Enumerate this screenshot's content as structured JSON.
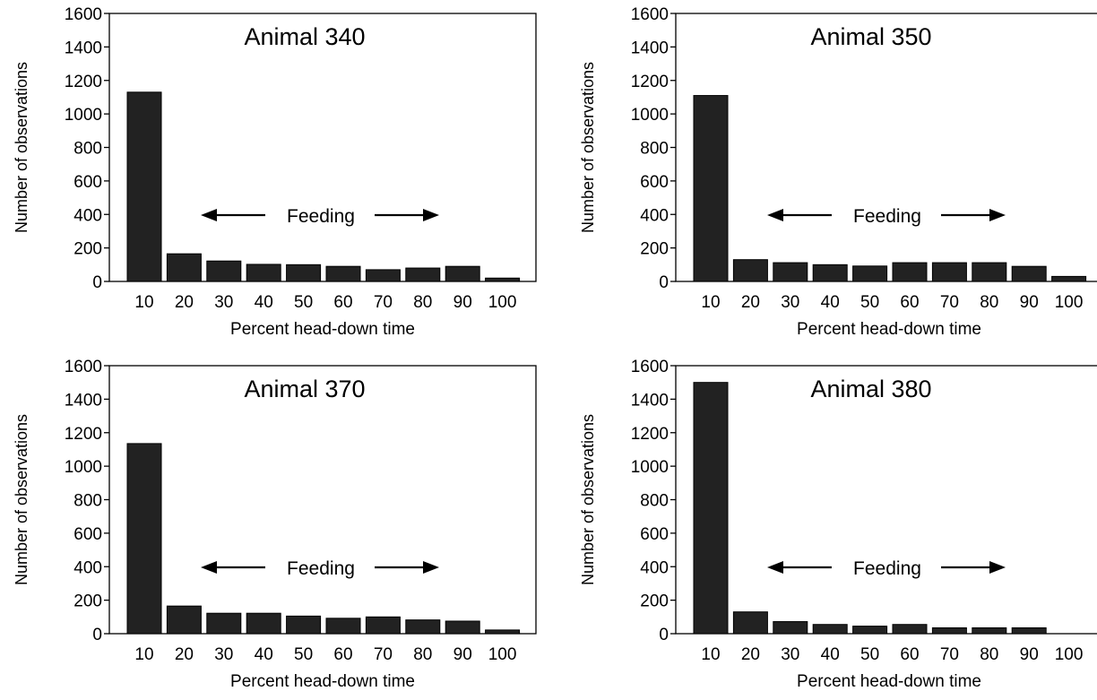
{
  "chart_data": [
    {
      "type": "bar",
      "title": "Animal 340",
      "xlabel": "Percent head-down time",
      "ylabel": "Number of observations",
      "categories": [
        "10",
        "20",
        "30",
        "40",
        "50",
        "60",
        "70",
        "80",
        "90",
        "100"
      ],
      "values": [
        1130,
        165,
        122,
        102,
        100,
        90,
        70,
        80,
        90,
        20
      ],
      "ylim": [
        0,
        1600
      ],
      "yticks": [
        "0",
        "200",
        "400",
        "600",
        "800",
        "1000",
        "1200",
        "1400",
        "1600"
      ],
      "annotation": "Feeding",
      "bar_color": "#222222",
      "grid": false
    },
    {
      "type": "bar",
      "title": "Animal 350",
      "xlabel": "Percent head-down time",
      "ylabel": "Number of observations",
      "categories": [
        "10",
        "20",
        "30",
        "40",
        "50",
        "60",
        "70",
        "80",
        "90",
        "100"
      ],
      "values": [
        1110,
        130,
        112,
        100,
        92,
        112,
        112,
        112,
        90,
        30
      ],
      "ylim": [
        0,
        1600
      ],
      "yticks": [
        "0",
        "200",
        "400",
        "600",
        "800",
        "1000",
        "1200",
        "1400",
        "1600"
      ],
      "annotation": "Feeding",
      "bar_color": "#222222",
      "grid": false
    },
    {
      "type": "bar",
      "title": "Animal 370",
      "xlabel": "Percent head-down time",
      "ylabel": "Number of observations",
      "categories": [
        "10",
        "20",
        "30",
        "40",
        "50",
        "60",
        "70",
        "80",
        "90",
        "100"
      ],
      "values": [
        1135,
        165,
        122,
        122,
        105,
        92,
        100,
        82,
        75,
        22
      ],
      "ylim": [
        0,
        1600
      ],
      "yticks": [
        "0",
        "200",
        "400",
        "600",
        "800",
        "1000",
        "1200",
        "1400",
        "1600"
      ],
      "annotation": "Feeding",
      "bar_color": "#222222",
      "grid": false
    },
    {
      "type": "bar",
      "title": "Animal 380",
      "xlabel": "Percent head-down time",
      "ylabel": "Number of observations",
      "categories": [
        "10",
        "20",
        "30",
        "40",
        "50",
        "60",
        "70",
        "80",
        "90",
        "100"
      ],
      "values": [
        1500,
        130,
        72,
        55,
        45,
        55,
        35,
        35,
        35,
        0
      ],
      "ylim": [
        0,
        1600
      ],
      "yticks": [
        "0",
        "200",
        "400",
        "600",
        "800",
        "1000",
        "1200",
        "1400",
        "1600"
      ],
      "annotation": "Feeding",
      "bar_color": "#222222",
      "grid": false
    }
  ]
}
